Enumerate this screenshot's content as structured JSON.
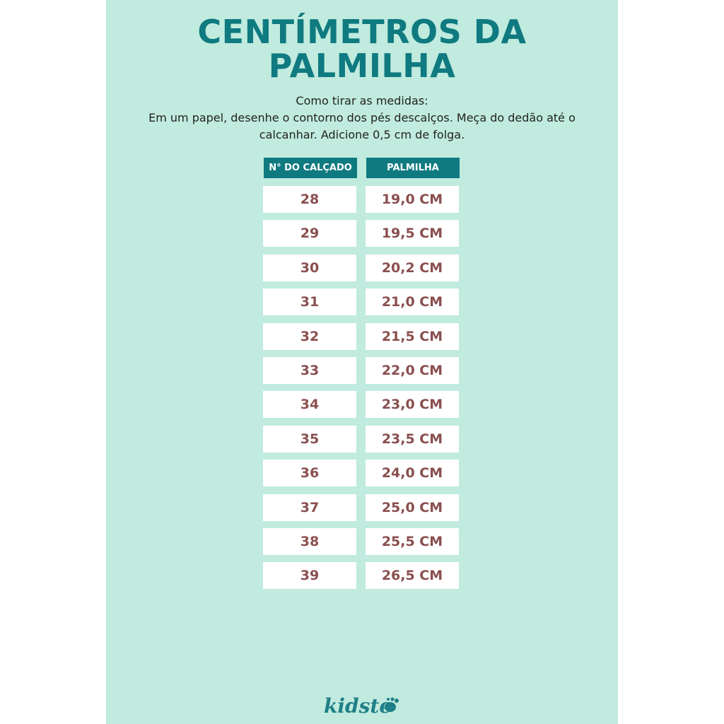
{
  "header": {
    "title": [
      "CENTÍMETROS DA",
      "PALMILHA"
    ],
    "instructions": [
      "Como tirar as medidas:",
      "Em um papel, desenhe o contorno dos pés descalços. Meça do dedão até o calcanhar. Adicione 0,5 cm de folga."
    ]
  },
  "table": {
    "columns": [
      "N° DO CALÇADO",
      "PALMILHA"
    ],
    "rows": [
      [
        "28",
        "19,0 CM"
      ],
      [
        "29",
        "19,5 CM"
      ],
      [
        "30",
        "20,2 CM"
      ],
      [
        "31",
        "21,0 CM"
      ],
      [
        "32",
        "21,5 CM"
      ],
      [
        "33",
        "22,0 CM"
      ],
      [
        "34",
        "23,0 CM"
      ],
      [
        "35",
        "23,5 CM"
      ],
      [
        "36",
        "24,0 CM"
      ],
      [
        "37",
        "25,0 CM"
      ],
      [
        "38",
        "25,5 CM"
      ],
      [
        "39",
        "26,5 CM"
      ]
    ]
  },
  "footer": {
    "logo": "kidste"
  }
}
